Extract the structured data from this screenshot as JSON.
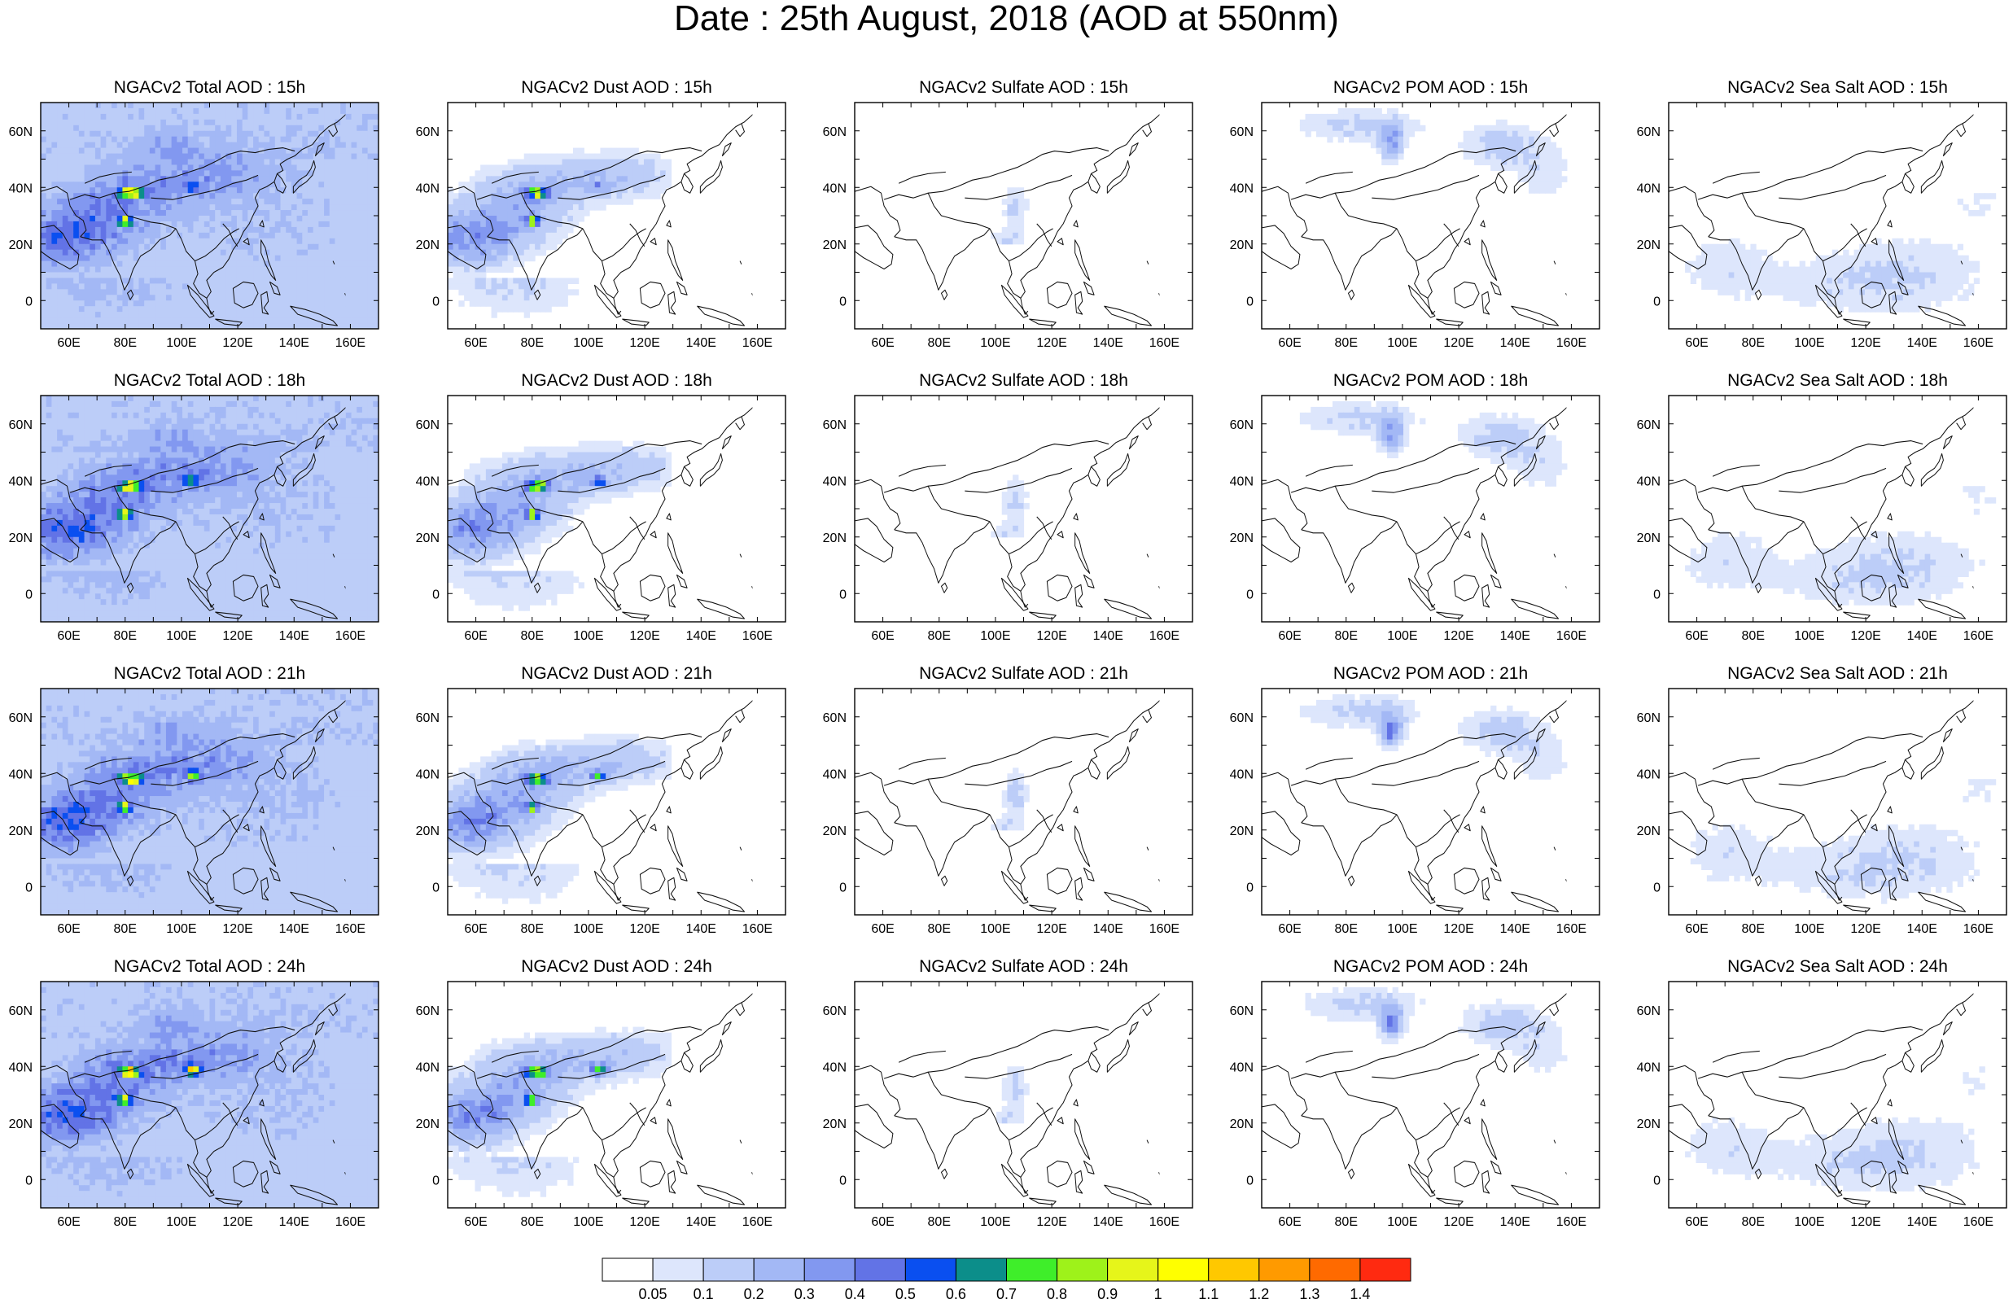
{
  "title": "Date : 25th August, 2018 (AOD at 550nm)",
  "chart_data": {
    "type": "heatmap",
    "description_grid": "4 rows (forecast hours) x 5 columns (aerosol species) of map panels",
    "panel_titles": [
      [
        "NGACv2 Total AOD : 15h",
        "NGACv2 Dust AOD : 15h",
        "NGACv2 Sulfate AOD : 15h",
        "NGACv2 POM AOD : 15h",
        "NGACv2 Sea Salt AOD : 15h"
      ],
      [
        "NGACv2 Total AOD : 18h",
        "NGACv2 Dust AOD : 18h",
        "NGACv2 Sulfate AOD : 18h",
        "NGACv2 POM AOD : 18h",
        "NGACv2 Sea Salt AOD : 18h"
      ],
      [
        "NGACv2 Total AOD : 21h",
        "NGACv2 Dust AOD : 21h",
        "NGACv2 Sulfate AOD : 21h",
        "NGACv2 POM AOD : 21h",
        "NGACv2 Sea Salt AOD : 21h"
      ],
      [
        "NGACv2 Total AOD : 24h",
        "NGACv2 Dust AOD : 24h",
        "NGACv2 Sulfate AOD : 24h",
        "NGACv2 POM AOD : 24h",
        "NGACv2 Sea Salt  AOD : 24h"
      ]
    ],
    "lon_range": [
      50,
      170
    ],
    "lat_range": [
      -10,
      70
    ],
    "x_ticks": [
      60,
      80,
      100,
      120,
      140,
      160
    ],
    "x_tick_labels": [
      "60E",
      "80E",
      "100E",
      "120E",
      "140E",
      "160E"
    ],
    "y_ticks": [
      0,
      20,
      40,
      60
    ],
    "y_tick_labels": [
      "0",
      "20N",
      "40N",
      "60N"
    ],
    "colorbar": {
      "labels": [
        "0.05",
        "0.1",
        "0.2",
        "0.3",
        "0.4",
        "0.5",
        "0.6",
        "0.7",
        "0.8",
        "0.9",
        "1",
        "1.1",
        "1.2",
        "1.3",
        "1.4"
      ],
      "colors": [
        "#ffffff",
        "#dde6fc",
        "#bccdf8",
        "#a3b8f5",
        "#8298f0",
        "#6273e6",
        "#0a4ff0",
        "#0c8e8a",
        "#3fee2a",
        "#9ef21a",
        "#e6f51a",
        "#ffff00",
        "#ffc800",
        "#ff9a00",
        "#ff6a00",
        "#ff2a10"
      ]
    },
    "species_max_aod": {
      "Total": 0.9,
      "Dust": 0.9,
      "Sulfate": 0.2,
      "POM": 0.5,
      "Sea Salt": 0.2
    }
  }
}
